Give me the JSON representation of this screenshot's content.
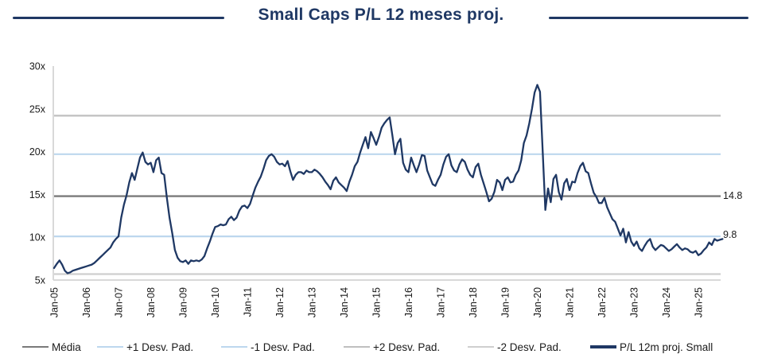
{
  "title": {
    "text": "Small Caps P/L 12 meses proj."
  },
  "colors": {
    "accent_navy": "#1f3864",
    "band_blue": "#bdd7ee",
    "media_gray": "#7a7a7a",
    "band_gray_plus2": "#bfbfbf",
    "band_gray_minus2": "#cfcfcf",
    "axis_border": "#d9d9d9",
    "label_text": "#1a1a1a"
  },
  "right_labels": {
    "media": "14.8",
    "last": "9.8"
  },
  "legend": {
    "items": [
      {
        "label": "Média",
        "color": "#7a7a7a",
        "thickness": 2.6
      },
      {
        "label": "+1 Desv. Pad.",
        "color": "#bdd7ee",
        "thickness": 2.6
      },
      {
        "label": "-1 Desv. Pad.",
        "color": "#bdd7ee",
        "thickness": 2.6
      },
      {
        "label": "+2 Desv. Pad.",
        "color": "#bfbfbf",
        "thickness": 2.6
      },
      {
        "label": "-2 Desv. Pad.",
        "color": "#cfcfcf",
        "thickness": 2.6
      },
      {
        "label": "P/L 12m proj. Small",
        "color": "#1f3864",
        "thickness": 3.2
      }
    ]
  },
  "chart_data": {
    "type": "line",
    "title": "Small Caps P/L 12 meses proj.",
    "xlabel": "",
    "ylabel": "",
    "ylim": [
      5,
      30
    ],
    "grid": false,
    "legend_position": "bottom",
    "y_tick_labels": [
      "30x",
      "25x",
      "20x",
      "15x",
      "10x",
      "5x"
    ],
    "y_tick_values": [
      30,
      25,
      20,
      15,
      10,
      5
    ],
    "x_tick_labels": [
      "Jan-05",
      "Jan-06",
      "Jan-07",
      "Jan-08",
      "Jan-09",
      "Jan-10",
      "Jan-11",
      "Jan-12",
      "Jan-13",
      "Jan-14",
      "Jan-15",
      "Jan-16",
      "Jan-17",
      "Jan-18",
      "Jan-19",
      "Jan-20",
      "Jan-21",
      "Jan-22",
      "Jan-23",
      "Jan-24",
      "Jan-25"
    ],
    "frequency": "monthly",
    "x_start": "Jan-05",
    "x_end": "Oct-25",
    "annotations": [
      {
        "text": "14.8",
        "attached_to": "Média"
      },
      {
        "text": "9.8",
        "attached_to": "last point of P/L 12m proj. Small"
      }
    ],
    "series": [
      {
        "name": "Média",
        "type": "hline",
        "value": 14.8,
        "color": "#7a7a7a",
        "width": 2.4
      },
      {
        "name": "+1 Desv. Pad.",
        "type": "hline",
        "value": 19.7,
        "color": "#bdd7ee",
        "width": 2.2
      },
      {
        "name": "-1 Desv. Pad.",
        "type": "hline",
        "value": 10.1,
        "color": "#bdd7ee",
        "width": 2.2
      },
      {
        "name": "+2 Desv. Pad.",
        "type": "hline",
        "value": 24.2,
        "color": "#bfbfbf",
        "width": 2.2
      },
      {
        "name": "-2 Desv. Pad.",
        "type": "hline",
        "value": 5.7,
        "color": "#cfcfcf",
        "width": 2.2
      },
      {
        "name": "P/L 12m proj. Small",
        "type": "line",
        "color": "#1f3864",
        "width": 2.3,
        "last_value": 9.8,
        "values": [
          6.4,
          6.9,
          7.3,
          6.8,
          6.1,
          5.8,
          5.9,
          6.1,
          6.2,
          6.3,
          6.4,
          6.5,
          6.6,
          6.7,
          6.8,
          7.0,
          7.3,
          7.6,
          7.9,
          8.2,
          8.5,
          8.8,
          9.4,
          9.8,
          10.1,
          12.3,
          13.8,
          14.9,
          16.4,
          17.5,
          16.7,
          18.0,
          19.3,
          19.9,
          18.8,
          18.5,
          18.7,
          17.6,
          19.0,
          19.3,
          17.5,
          17.3,
          14.6,
          12.3,
          10.5,
          8.5,
          7.6,
          7.2,
          7.1,
          7.3,
          6.9,
          7.3,
          7.2,
          7.3,
          7.2,
          7.4,
          7.8,
          8.7,
          9.5,
          10.4,
          11.2,
          11.3,
          11.5,
          11.4,
          11.5,
          12.1,
          12.4,
          12.0,
          12.3,
          13.1,
          13.6,
          13.7,
          13.4,
          13.9,
          14.9,
          15.8,
          16.5,
          17.1,
          18.0,
          19.0,
          19.5,
          19.7,
          19.4,
          18.8,
          18.5,
          18.6,
          18.3,
          18.9,
          17.7,
          16.7,
          17.3,
          17.6,
          17.6,
          17.4,
          17.8,
          17.6,
          17.6,
          17.9,
          17.7,
          17.4,
          17.0,
          16.5,
          16.1,
          15.6,
          16.6,
          17.0,
          16.4,
          16.1,
          15.8,
          15.4,
          16.5,
          17.3,
          18.3,
          18.8,
          19.9,
          20.8,
          21.7,
          20.4,
          22.3,
          21.6,
          20.8,
          21.7,
          22.8,
          23.3,
          23.7,
          24.0,
          21.9,
          19.7,
          21.0,
          21.5,
          18.7,
          17.9,
          17.6,
          19.3,
          18.4,
          17.6,
          18.5,
          19.6,
          19.5,
          17.8,
          17.0,
          16.2,
          16.0,
          16.7,
          17.3,
          18.5,
          19.4,
          19.7,
          18.4,
          17.8,
          17.6,
          18.5,
          19.1,
          18.8,
          17.9,
          17.3,
          17.0,
          18.2,
          18.6,
          17.3,
          16.3,
          15.3,
          14.2,
          14.5,
          15.3,
          16.7,
          16.4,
          15.5,
          16.7,
          17.0,
          16.4,
          16.5,
          17.3,
          17.8,
          19.0,
          21.0,
          21.9,
          23.3,
          25.0,
          26.9,
          27.8,
          27.0,
          20.0,
          13.2,
          15.7,
          14.1,
          16.8,
          17.3,
          15.3,
          14.4,
          16.3,
          16.8,
          15.5,
          16.5,
          16.4,
          17.5,
          18.3,
          18.7,
          17.7,
          17.5,
          16.3,
          15.2,
          14.7,
          14.0,
          14.0,
          14.6,
          13.5,
          12.8,
          12.1,
          11.8,
          11.0,
          10.2,
          11.0,
          9.4,
          10.6,
          9.5,
          9.0,
          9.5,
          8.7,
          8.4,
          9.0,
          9.5,
          9.8,
          8.9,
          8.5,
          8.8,
          9.1,
          9.0,
          8.7,
          8.4,
          8.6,
          8.9,
          9.2,
          8.8,
          8.5,
          8.7,
          8.6,
          8.3,
          8.2,
          8.4,
          7.9,
          8.1,
          8.5,
          8.8,
          9.4,
          9.1,
          9.8,
          9.6,
          9.7,
          9.8
        ]
      }
    ]
  }
}
